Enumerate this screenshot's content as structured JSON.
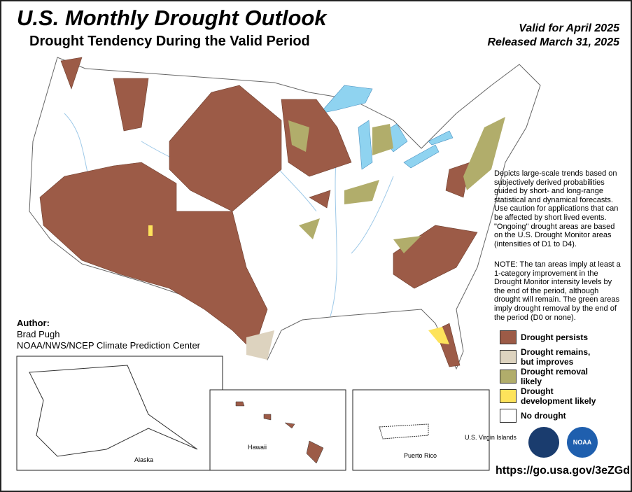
{
  "header": {
    "title": "U.S. Monthly Drought Outlook",
    "subtitle": "Drought Tendency During the Valid Period",
    "valid": "Valid for April 2025",
    "released": "Released March 31, 2025"
  },
  "description": "Depicts large-scale trends based on subjectively derived probabilities guided by short- and long-range statistical and dynamical forecasts. Use caution for applications that can be affected by short lived events. \"Ongoing\" drought areas are based on the U.S. Drought Monitor areas (intensities of D1 to D4).",
  "note": "NOTE: The tan areas imply at least a 1-category improvement in the Drought Monitor intensity levels by the end of the period, although drought will remain. The green areas imply drought removal by the end of the period (D0 or none).",
  "author": {
    "label": "Author:",
    "name": "Brad Pugh",
    "org": "NOAA/NWS/NCEP Climate Prediction Center"
  },
  "legend": [
    {
      "label": "Drought persists",
      "color": "#9c5b47"
    },
    {
      "label": "Drought remains, but improves",
      "color": "#ddd3bf"
    },
    {
      "label": "Drought removal likely",
      "color": "#b1ad6b"
    },
    {
      "label": "Drought development likely",
      "color": "#fde35b"
    },
    {
      "label": "No drought",
      "color": "#ffffff"
    }
  ],
  "insets": {
    "alaska": "Alaska",
    "hawaii": "Hawaii",
    "puerto_rico": "Puerto Rico",
    "virgin_islands": "U.S. Virgin Islands"
  },
  "logo": "NOAA",
  "url": "https://go.usa.gov/3eZGd"
}
